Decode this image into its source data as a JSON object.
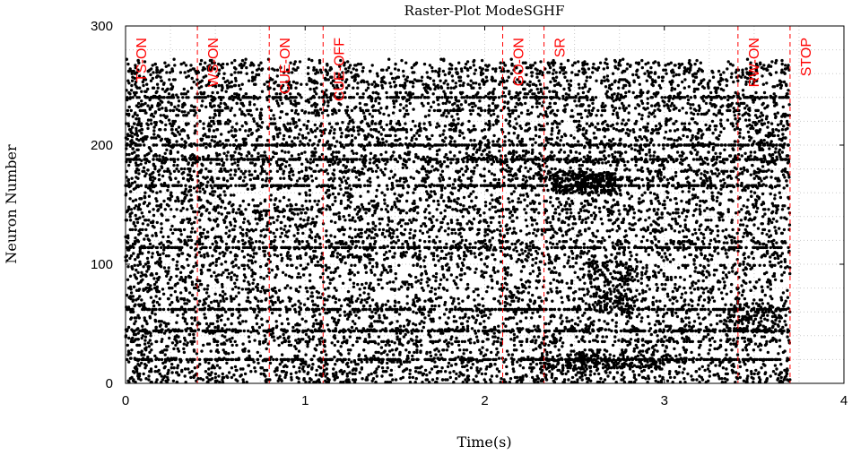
{
  "chart_data": {
    "type": "scatter",
    "title": "Raster-Plot ModeSGHF",
    "xlabel": "Time(s)",
    "ylabel": "Neuron Number",
    "xlim": [
      0,
      4
    ],
    "ylim": [
      0,
      300
    ],
    "xticks": [
      0,
      1,
      2,
      3,
      4
    ],
    "yticks": [
      0,
      100,
      200,
      300
    ],
    "grid": true,
    "marker_color": "#000000",
    "event_color": "#ff0000",
    "neuron_count": 272,
    "spike_time_range": [
      0,
      3.7
    ],
    "events": [
      {
        "label": "TS-ON",
        "time": 0.0
      },
      {
        "label": "WS-ON",
        "time": 0.4
      },
      {
        "label": "CUE-ON",
        "time": 0.8
      },
      {
        "label": "CUE-OFF",
        "time": 1.1
      },
      {
        "label": "GO-ON",
        "time": 2.1
      },
      {
        "label": "SR",
        "time": 2.33
      },
      {
        "label": "RW-ON",
        "time": 3.41
      },
      {
        "label": "STOP",
        "time": 3.7
      }
    ]
  }
}
